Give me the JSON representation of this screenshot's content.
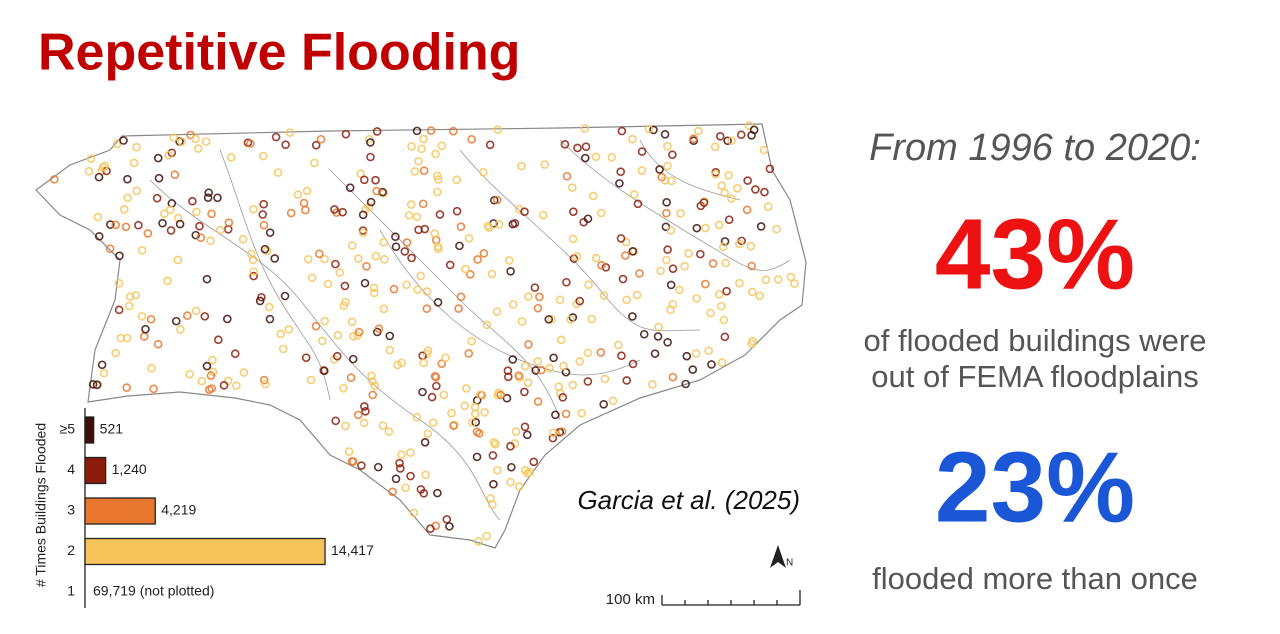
{
  "title": "Repetitive Flooding",
  "map": {
    "citation": "Garcia et al. (2025)",
    "scale_label": "100 km",
    "north": "N"
  },
  "facts": {
    "period": "From 1996 to 2020:",
    "stat1": "43%",
    "stat1_text": [
      "of flooded buildings were",
      "out of FEMA floodplains"
    ],
    "stat2": "23%",
    "stat2_text": "flooded more than once"
  },
  "chart_data": {
    "type": "bar",
    "orientation": "horizontal",
    "y_label": "# Times Buildings Flooded",
    "categories": [
      "≥5",
      "4",
      "3",
      "2",
      "1"
    ],
    "values": [
      521,
      1240,
      4219,
      14417,
      69719
    ],
    "value_labels": [
      "521",
      "1,240",
      "4,219",
      "14,417",
      "69,719 (not plotted)"
    ],
    "colors": [
      "#3d0f08",
      "#8b1c0c",
      "#e8762c",
      "#f6c45a",
      null
    ]
  }
}
